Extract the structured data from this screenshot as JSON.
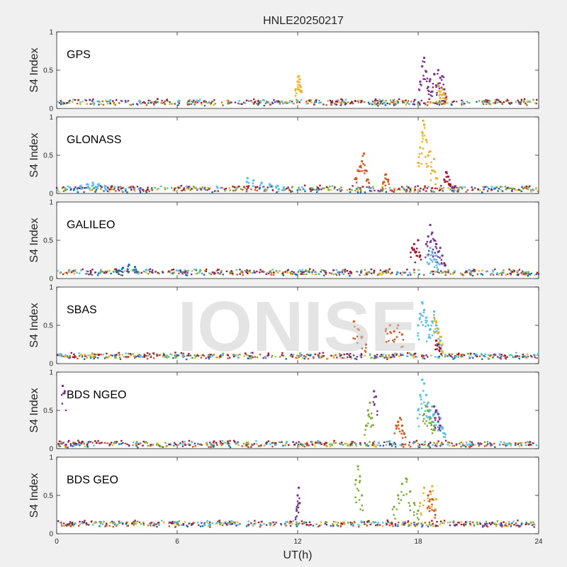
{
  "figure": {
    "title": "HNLE20250217",
    "xlabel": "UT(h)",
    "ylabel": "S4 Index",
    "watermark": "IONISE"
  },
  "colors": [
    "#0072BD",
    "#D95319",
    "#EDB120",
    "#7E2F8E",
    "#77AC30",
    "#4DBEEE",
    "#A2142F"
  ],
  "chart_data": {
    "type": "scatter",
    "title": "HNLE20250217",
    "xlabel": "UT(h)",
    "ylabel": "S4 Index",
    "xlim": [
      0,
      24
    ],
    "ylim": [
      0,
      1
    ],
    "xticks": [
      0,
      6,
      12,
      18,
      24
    ],
    "yticks": [
      0,
      0.5,
      1
    ],
    "grid": false,
    "panels": [
      {
        "name": "GPS",
        "baseline": 0.08,
        "series": [
          {
            "x": [
              11.9,
              12.0,
              12.05,
              12.1,
              12.15
            ],
            "y": [
              0.25,
              0.35,
              0.42,
              0.38,
              0.28
            ],
            "color": 2
          },
          {
            "x": [
              18.1,
              18.2,
              18.3,
              18.4,
              18.5,
              18.6,
              18.7
            ],
            "y": [
              0.35,
              0.55,
              0.66,
              0.48,
              0.28,
              0.38,
              0.22
            ],
            "color": 3
          },
          {
            "x": [
              18.8,
              18.9,
              19.0,
              19.1,
              19.2,
              19.3,
              19.4
            ],
            "y": [
              0.45,
              0.3,
              0.5,
              0.4,
              0.42,
              0.25,
              0.15
            ],
            "color": 3
          },
          {
            "x": [
              19.0,
              19.1,
              19.2,
              19.3,
              19.4
            ],
            "y": [
              0.3,
              0.22,
              0.25,
              0.18,
              0.12
            ],
            "color": 2
          }
        ]
      },
      {
        "name": "GLONASS",
        "baseline": 0.06,
        "series": [
          {
            "x": [
              18.0,
              18.1,
              18.2,
              18.25,
              18.3,
              18.4,
              18.5,
              18.6,
              18.7,
              18.8,
              18.9
            ],
            "y": [
              0.4,
              0.6,
              0.8,
              0.95,
              0.9,
              0.7,
              0.5,
              0.55,
              0.3,
              0.45,
              0.2
            ],
            "color": 2
          },
          {
            "x": [
              14.9,
              15.0,
              15.1,
              15.2,
              15.3,
              15.4,
              15.5
            ],
            "y": [
              0.2,
              0.3,
              0.35,
              0.42,
              0.52,
              0.3,
              0.18
            ],
            "color": 1
          },
          {
            "x": [
              16.3,
              16.4,
              16.5
            ],
            "y": [
              0.15,
              0.25,
              0.18
            ],
            "color": 1
          },
          {
            "x": [
              9.5,
              9.8,
              10.2,
              10.6,
              11.0,
              11.3
            ],
            "y": [
              0.2,
              0.17,
              0.14,
              0.12,
              0.1,
              0.08
            ],
            "color": 5
          },
          {
            "x": [
              1.2,
              1.5,
              1.8,
              2.1,
              2.4
            ],
            "y": [
              0.1,
              0.12,
              0.14,
              0.12,
              0.1
            ],
            "color": 5
          },
          {
            "x": [
              19.3,
              19.4,
              19.5,
              19.6
            ],
            "y": [
              0.18,
              0.28,
              0.22,
              0.12
            ],
            "color": 6
          }
        ]
      },
      {
        "name": "GALILEO",
        "baseline": 0.08,
        "series": [
          {
            "x": [
              17.7,
              17.8,
              17.9,
              18.0,
              18.1
            ],
            "y": [
              0.4,
              0.45,
              0.35,
              0.5,
              0.3
            ],
            "color": 6
          },
          {
            "x": [
              18.4,
              18.5,
              18.6,
              18.7,
              18.8,
              18.9,
              19.0,
              19.1,
              19.2,
              19.3
            ],
            "y": [
              0.45,
              0.55,
              0.7,
              0.6,
              0.5,
              0.45,
              0.35,
              0.4,
              0.3,
              0.2
            ],
            "color": 3
          },
          {
            "x": [
              18.5,
              18.6,
              18.7,
              18.8,
              18.9,
              19.0
            ],
            "y": [
              0.3,
              0.4,
              0.35,
              0.25,
              0.3,
              0.2
            ],
            "color": 5
          },
          {
            "x": [
              3.0,
              3.3,
              3.6,
              3.9
            ],
            "y": [
              0.1,
              0.14,
              0.18,
              0.15
            ],
            "color": 0
          }
        ]
      },
      {
        "name": "SBAS",
        "baseline": 0.1,
        "series": [
          {
            "x": [
              14.8,
              15.0,
              15.2,
              15.4
            ],
            "y": [
              0.55,
              0.45,
              0.35,
              0.25
            ],
            "color": 1
          },
          {
            "x": [
              16.4,
              16.6,
              16.8,
              17.0,
              17.2
            ],
            "y": [
              0.45,
              0.5,
              0.42,
              0.5,
              0.38
            ],
            "color": 1
          },
          {
            "x": [
              18.0,
              18.1,
              18.2,
              18.3,
              18.4,
              18.5,
              18.6,
              18.7,
              18.8,
              18.9,
              19.0,
              19.1
            ],
            "y": [
              0.5,
              0.65,
              0.8,
              0.7,
              0.6,
              0.5,
              0.45,
              0.55,
              0.68,
              0.5,
              0.4,
              0.3
            ],
            "color": 5
          },
          {
            "x": [
              18.8,
              18.9,
              19.0,
              19.1,
              19.2
            ],
            "y": [
              0.6,
              0.55,
              0.45,
              0.35,
              0.25
            ],
            "color": 2
          },
          {
            "x": [
              18.9,
              19.0,
              19.1
            ],
            "y": [
              0.3,
              0.25,
              0.2
            ],
            "color": 6
          }
        ]
      },
      {
        "name": "BDS NGEO",
        "baseline": 0.06,
        "series": [
          {
            "x": [
              0.3,
              0.4
            ],
            "y": [
              0.82,
              0.75
            ],
            "color": 3
          },
          {
            "x": [
              15.4,
              15.5,
              15.6,
              15.7
            ],
            "y": [
              0.3,
              0.5,
              0.6,
              0.4
            ],
            "color": 4
          },
          {
            "x": [
              15.8,
              15.9
            ],
            "y": [
              0.75,
              0.68
            ],
            "color": 3
          },
          {
            "x": [
              16.9,
              17.0,
              17.1,
              17.2,
              17.3
            ],
            "y": [
              0.3,
              0.35,
              0.4,
              0.3,
              0.2
            ],
            "color": 1
          },
          {
            "x": [
              18.0,
              18.1,
              18.2,
              18.3,
              18.4,
              18.5,
              18.6,
              18.7,
              18.8,
              18.9,
              19.0,
              19.1,
              19.2,
              19.3
            ],
            "y": [
              0.5,
              0.7,
              0.9,
              0.85,
              0.7,
              0.6,
              0.5,
              0.55,
              0.45,
              0.5,
              0.35,
              0.4,
              0.28,
              0.2
            ],
            "color": 5
          },
          {
            "x": [
              18.3,
              18.4,
              18.5,
              18.6,
              18.7,
              18.8
            ],
            "y": [
              0.45,
              0.55,
              0.5,
              0.4,
              0.35,
              0.3
            ],
            "color": 4
          },
          {
            "x": [
              18.8,
              18.9,
              19.0,
              19.1
            ],
            "y": [
              0.55,
              0.5,
              0.45,
              0.3
            ],
            "color": 3
          }
        ]
      },
      {
        "name": "BDS GEO",
        "baseline": 0.13,
        "series": [
          {
            "x": [
              11.95,
              12.0,
              12.05,
              12.1
            ],
            "y": [
              0.3,
              0.5,
              0.6,
              0.4
            ],
            "color": 3
          },
          {
            "x": [
              14.9,
              15.0,
              15.1,
              15.2
            ],
            "y": [
              0.7,
              0.88,
              0.75,
              0.5
            ],
            "color": 4
          },
          {
            "x": [
              16.8,
              17.0,
              17.2,
              17.4,
              17.6,
              17.8,
              18.0
            ],
            "y": [
              0.35,
              0.5,
              0.65,
              0.72,
              0.55,
              0.4,
              0.3
            ],
            "color": 4
          },
          {
            "x": [
              18.1,
              18.3,
              18.5,
              18.7,
              18.9
            ],
            "y": [
              0.4,
              0.6,
              0.5,
              0.62,
              0.45
            ],
            "color": 2
          },
          {
            "x": [
              18.5,
              18.6,
              18.7,
              18.8
            ],
            "y": [
              0.5,
              0.55,
              0.45,
              0.3
            ],
            "color": 1
          }
        ]
      }
    ]
  }
}
